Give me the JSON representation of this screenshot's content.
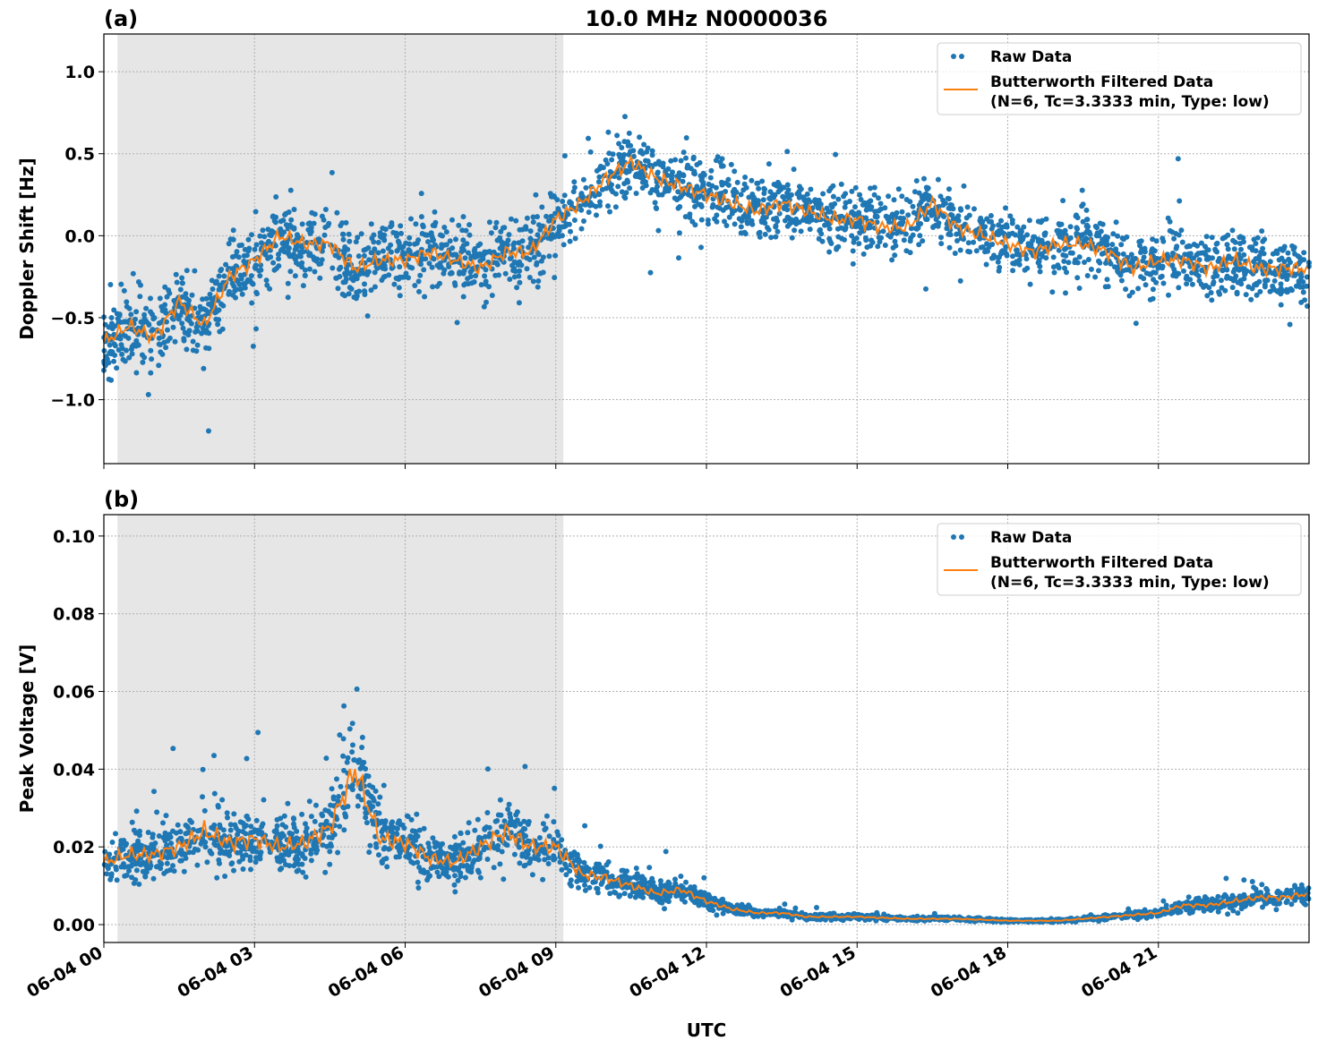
{
  "chart_data": [
    {
      "type": "scatter",
      "panel_label": "(a)",
      "title": "10.0 MHz N0000036",
      "ylabel": "Doppler Shift [Hz]",
      "xlabel": "",
      "xlim_hours": [
        0,
        24
      ],
      "ylim": [
        -1.39,
        1.23
      ],
      "yticks": [
        1.0,
        0.5,
        0.0,
        -0.5,
        -1.0
      ],
      "ytick_labels": [
        "1.0",
        "0.5",
        "0.0",
        "−0.5",
        "−1.0"
      ],
      "grid": true,
      "shaded_region_hours": [
        0.27,
        9.15
      ],
      "legend": {
        "placement": "top-right",
        "entries": [
          "Raw Data",
          "Butterworth Filtered Data",
          "(N=6, Tc=3.3333 min, Type: low)"
        ]
      },
      "series": [
        {
          "name": "Butterworth Filtered Data",
          "color": "#ff7f0e",
          "x_hours": [
            0,
            0.5,
            1,
            1.5,
            2,
            2.5,
            3,
            3.5,
            4,
            4.5,
            5,
            5.5,
            6,
            6.5,
            7,
            7.5,
            8,
            8.5,
            9,
            9.5,
            10,
            10.5,
            11,
            11.5,
            12,
            12.5,
            13,
            13.5,
            14,
            14.5,
            15,
            15.5,
            16,
            16.5,
            17,
            17.5,
            18,
            18.5,
            19,
            19.5,
            20,
            20.5,
            21,
            21.5,
            22,
            22.5,
            23,
            23.5,
            24
          ],
          "values": [
            -0.65,
            -0.55,
            -0.62,
            -0.4,
            -0.55,
            -0.25,
            -0.15,
            0.0,
            -0.05,
            -0.05,
            -0.2,
            -0.15,
            -0.15,
            -0.1,
            -0.15,
            -0.2,
            -0.1,
            -0.1,
            0.1,
            0.2,
            0.35,
            0.45,
            0.35,
            0.3,
            0.25,
            0.2,
            0.15,
            0.2,
            0.15,
            0.1,
            0.1,
            0.05,
            0.05,
            0.2,
            0.05,
            0.0,
            -0.05,
            -0.1,
            -0.05,
            -0.05,
            -0.1,
            -0.2,
            -0.15,
            -0.15,
            -0.2,
            -0.15,
            -0.2,
            -0.2,
            -0.2
          ]
        },
        {
          "name": "Raw Data",
          "color": "#1f77b4",
          "spread_before_9h": 0.3,
          "spread_after_9h": 0.25
        }
      ]
    },
    {
      "type": "scatter",
      "panel_label": "(b)",
      "title": "",
      "ylabel": "Peak Voltage [V]",
      "xlabel": "UTC",
      "xlim_hours": [
        0,
        24
      ],
      "ylim": [
        -0.0046,
        0.1055
      ],
      "yticks": [
        0.0,
        0.02,
        0.04,
        0.06,
        0.08,
        0.1
      ],
      "ytick_labels": [
        "0.00",
        "0.02",
        "0.04",
        "0.06",
        "0.08",
        "0.10"
      ],
      "xticks_hours": [
        0,
        3,
        6,
        9,
        12,
        15,
        18,
        21
      ],
      "xtick_labels": [
        "06-04 00",
        "06-04 03",
        "06-04 06",
        "06-04 09",
        "06-04 12",
        "06-04 15",
        "06-04 18",
        "06-04 21"
      ],
      "grid": true,
      "shaded_region_hours": [
        0.27,
        9.15
      ],
      "legend": {
        "placement": "top-right",
        "entries": [
          "Raw Data",
          "Butterworth Filtered Data",
          "(N=6, Tc=3.3333 min, Type: low)"
        ]
      },
      "series": [
        {
          "name": "Butterworth Filtered Data",
          "color": "#ff7f0e",
          "x_hours": [
            0,
            0.5,
            1,
            1.5,
            2,
            2.5,
            3,
            3.5,
            4,
            4.5,
            5,
            5.5,
            6,
            6.5,
            7,
            7.5,
            8,
            8.5,
            9,
            9.5,
            10,
            10.5,
            11,
            11.5,
            12,
            12.5,
            13,
            13.5,
            14,
            14.5,
            15,
            16,
            17,
            18,
            19,
            20,
            21,
            21.5,
            22,
            22.5,
            23,
            23.5,
            24
          ],
          "values": [
            0.016,
            0.018,
            0.018,
            0.02,
            0.024,
            0.021,
            0.022,
            0.02,
            0.021,
            0.025,
            0.04,
            0.022,
            0.021,
            0.017,
            0.016,
            0.02,
            0.024,
            0.02,
            0.02,
            0.013,
            0.012,
            0.01,
            0.008,
            0.009,
            0.006,
            0.004,
            0.003,
            0.003,
            0.002,
            0.002,
            0.002,
            0.0015,
            0.0015,
            0.001,
            0.001,
            0.002,
            0.003,
            0.005,
            0.005,
            0.006,
            0.007,
            0.007,
            0.008
          ]
        },
        {
          "name": "Raw Data",
          "color": "#1f77b4",
          "relative_spread": 0.5
        }
      ]
    }
  ]
}
